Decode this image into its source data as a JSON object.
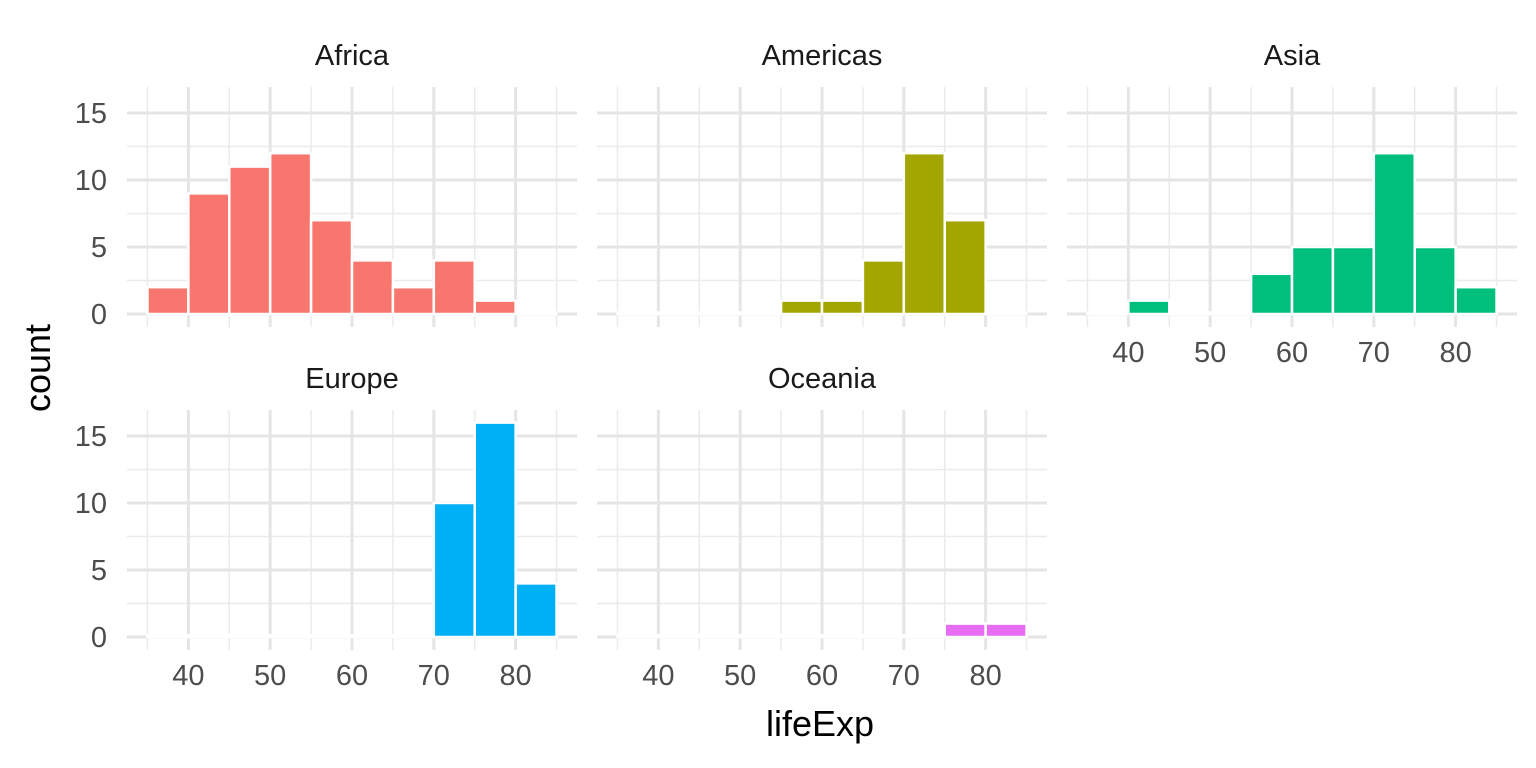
{
  "chart_data": {
    "type": "histogram",
    "title": "",
    "xlabel": "lifeExp",
    "ylabel": "count",
    "xlim": [
      32.5,
      87.5
    ],
    "ylim": [
      0,
      16
    ],
    "x_ticks": [
      40,
      50,
      60,
      70,
      80
    ],
    "y_ticks": [
      0,
      5,
      10,
      15
    ],
    "bin_width": 5,
    "bin_edges": [
      35,
      40,
      45,
      50,
      55,
      60,
      65,
      70,
      75,
      80,
      85
    ],
    "grid": true,
    "legend": "none",
    "facets": [
      {
        "label": "Africa",
        "color": "#F8766D",
        "values": [
          2,
          9,
          11,
          12,
          7,
          4,
          2,
          4,
          1,
          0
        ]
      },
      {
        "label": "Americas",
        "color": "#A3A500",
        "values": [
          0,
          0,
          0,
          0,
          1,
          1,
          4,
          12,
          7,
          0
        ]
      },
      {
        "label": "Asia",
        "color": "#00BF7D",
        "values": [
          0,
          1,
          0,
          0,
          3,
          5,
          5,
          12,
          5,
          2
        ]
      },
      {
        "label": "Europe",
        "color": "#00B0F6",
        "values": [
          0,
          0,
          0,
          0,
          0,
          0,
          0,
          10,
          16,
          4
        ]
      },
      {
        "label": "Oceania",
        "color": "#E76BF3",
        "values": [
          0,
          0,
          0,
          0,
          0,
          0,
          0,
          0,
          1,
          1
        ]
      }
    ]
  }
}
